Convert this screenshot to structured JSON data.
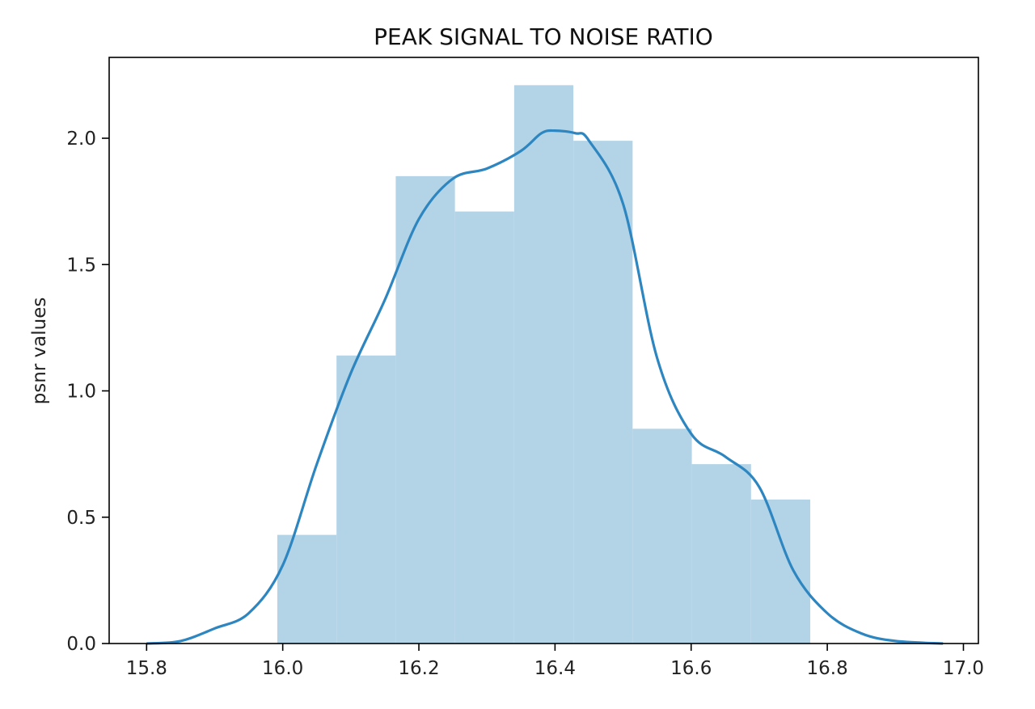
{
  "chart_data": {
    "type": "bar",
    "title": "PEAK SIGNAL TO NOISE RATIO",
    "xlabel": "",
    "ylabel": "psnr values",
    "xlim": [
      15.745,
      17.022
    ],
    "ylim": [
      0,
      2.32
    ],
    "xticks": [
      15.8,
      16.0,
      16.2,
      16.4,
      16.6,
      16.8,
      17.0
    ],
    "xtick_labels": [
      "15.8",
      "16.0",
      "16.2",
      "16.4",
      "16.6",
      "16.8",
      "17.0"
    ],
    "yticks": [
      0.0,
      0.5,
      1.0,
      1.5,
      2.0
    ],
    "ytick_labels": [
      "0.0",
      "0.5",
      "1.0",
      "1.5",
      "2.0"
    ],
    "histogram": {
      "bin_edges": [
        15.992,
        16.079,
        16.166,
        16.253,
        16.34,
        16.427,
        16.514,
        16.601,
        16.688,
        16.775
      ],
      "values": [
        0.43,
        1.14,
        1.85,
        1.71,
        2.21,
        1.99,
        0.85,
        0.71,
        0.57
      ],
      "color": "#b3d4e7"
    },
    "kde": {
      "color": "#2e86c1",
      "x": [
        15.8,
        15.85,
        15.9,
        15.95,
        16.0,
        16.05,
        16.1,
        16.15,
        16.2,
        16.25,
        16.3,
        16.35,
        16.38,
        16.4,
        16.43,
        16.45,
        16.5,
        16.55,
        16.6,
        16.65,
        16.7,
        16.75,
        16.8,
        16.85,
        16.9,
        16.97
      ],
      "y": [
        0.0,
        0.01,
        0.06,
        0.12,
        0.31,
        0.71,
        1.07,
        1.36,
        1.68,
        1.84,
        1.88,
        1.95,
        2.02,
        2.03,
        2.02,
        1.99,
        1.74,
        1.13,
        0.83,
        0.74,
        0.62,
        0.29,
        0.12,
        0.04,
        0.01,
        0.0
      ]
    },
    "grid": false,
    "legend": "none"
  }
}
